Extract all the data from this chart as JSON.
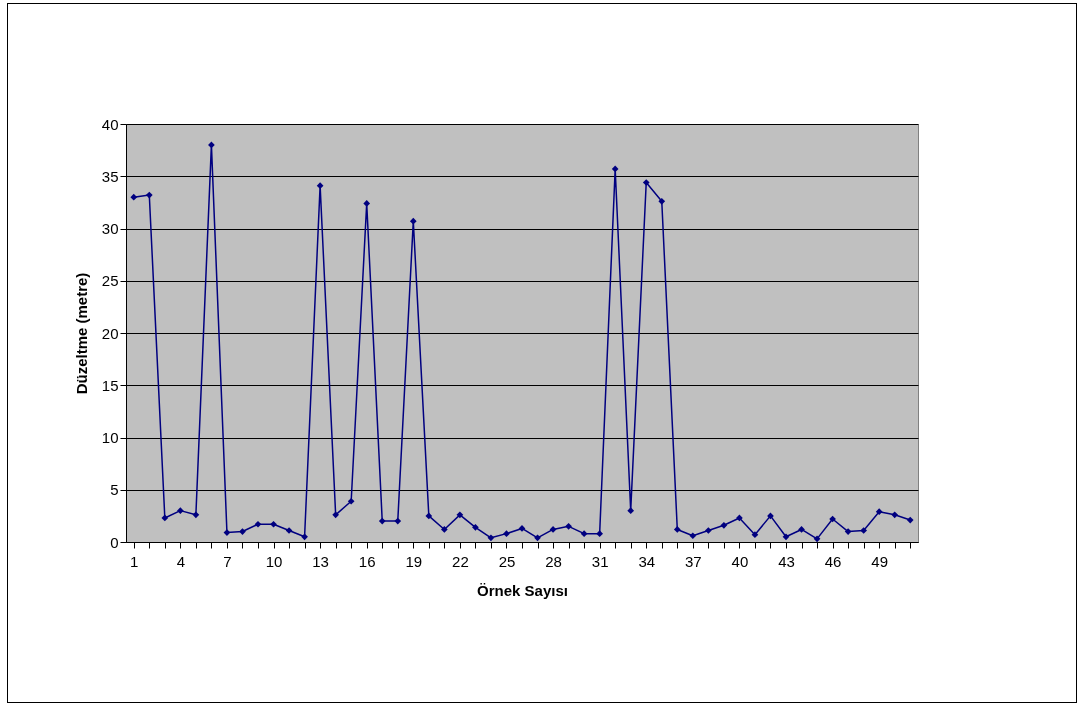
{
  "chart_data": {
    "type": "line",
    "xlabel": "Örnek Sayısı",
    "ylabel": "Düzeltme (metre)",
    "categories": [
      "1",
      null,
      null,
      "4",
      null,
      null,
      "7",
      null,
      null,
      "10",
      null,
      null,
      "13",
      null,
      null,
      "16",
      null,
      null,
      "19",
      null,
      null,
      "22",
      null,
      null,
      "25",
      null,
      null,
      "28",
      null,
      null,
      "31",
      null,
      null,
      "34",
      null,
      null,
      "37",
      null,
      null,
      "40",
      null,
      null,
      "43",
      null,
      null,
      "46",
      null,
      null,
      "49",
      null,
      null
    ],
    "series": [
      {
        "color": "#000080",
        "values": [
          33,
          33.2,
          2.3,
          3,
          2.6,
          38,
          0.9,
          1,
          1.7,
          1.7,
          1.1,
          0.5,
          34.1,
          2.6,
          3.9,
          32.4,
          2,
          2,
          30.7,
          2.5,
          1.2,
          2.6,
          1.4,
          0.4,
          0.8,
          1.3,
          0.4,
          1.2,
          1.5,
          0.8,
          0.8,
          35.7,
          3,
          34.4,
          32.6,
          1.2,
          0.6,
          1.1,
          1.6,
          2.3,
          0.7,
          2.5,
          0.5,
          1.2,
          0.3,
          2.2,
          1,
          1.1,
          2.9,
          2.6,
          2.1
        ]
      }
    ],
    "ylim": [
      0,
      40
    ],
    "yticks": [
      0,
      5,
      10,
      15,
      20,
      25,
      30,
      35,
      40
    ],
    "grid": "y",
    "marker": "diamond",
    "line_style": "solid"
  }
}
